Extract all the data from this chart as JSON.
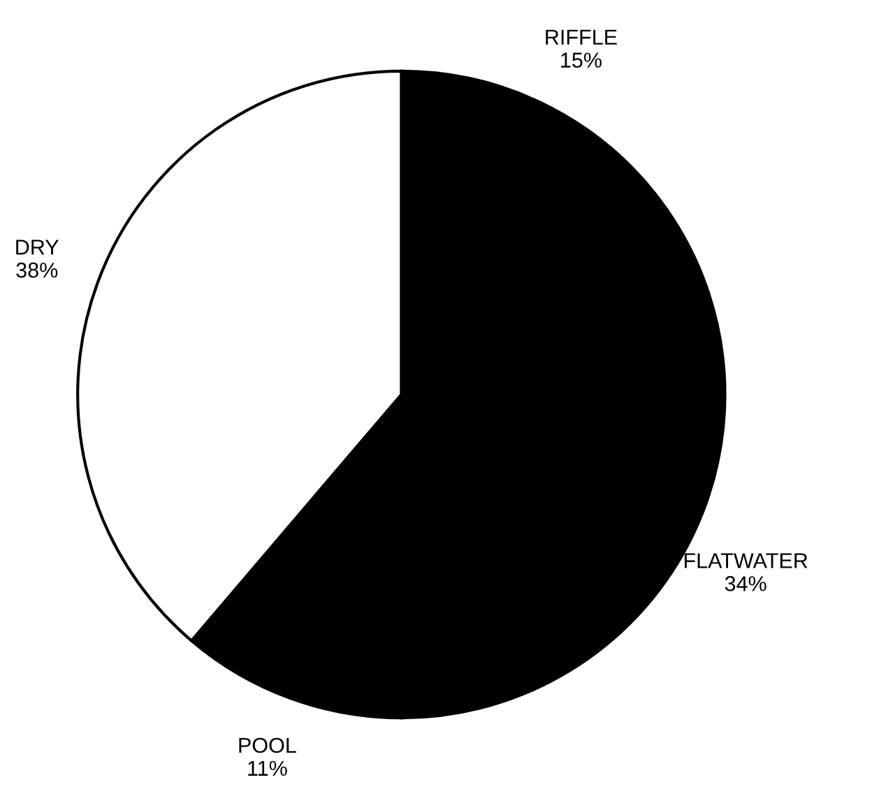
{
  "chart_data": {
    "type": "pie",
    "categories": [
      "RIFFLE",
      "FLATWATER",
      "POOL",
      "DRY"
    ],
    "values": [
      15,
      34,
      11,
      38
    ],
    "value_labels": [
      "15%",
      "34%",
      "11%",
      "38%"
    ],
    "colors": [
      "#000000",
      "#000000",
      "#000000",
      "#ffffff"
    ],
    "legend": false
  }
}
